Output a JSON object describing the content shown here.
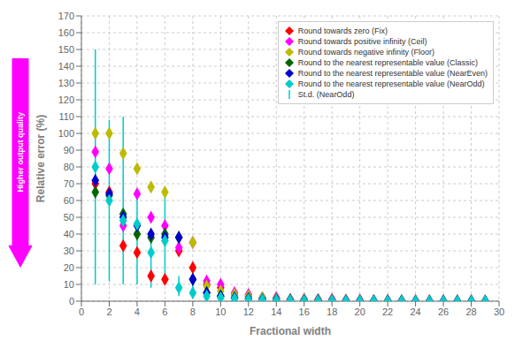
{
  "chart_data": {
    "type": "scatter",
    "xlabel": "Fractional width",
    "ylabel": "Relative error (%)",
    "xlim": [
      0,
      30
    ],
    "ylim": [
      0,
      170
    ],
    "xticks": [
      0,
      2,
      4,
      6,
      8,
      10,
      12,
      14,
      16,
      18,
      20,
      22,
      24,
      26,
      28,
      30
    ],
    "yticks": [
      0,
      10,
      20,
      30,
      40,
      50,
      60,
      70,
      80,
      90,
      100,
      110,
      120,
      130,
      140,
      150,
      160,
      170
    ],
    "grid": true,
    "legend": "upper right",
    "series": [
      {
        "name": "Round towards zero (Fix)",
        "color": "#ff0000",
        "marker": "diamond",
        "x": [
          1,
          2,
          3,
          4,
          5,
          6,
          7,
          8,
          9,
          10,
          11,
          12,
          13,
          14,
          15,
          16,
          17,
          18,
          19,
          20,
          21,
          22,
          23,
          24,
          25,
          26,
          27,
          28,
          29
        ],
        "values": [
          70,
          65,
          33,
          29,
          15,
          13,
          30,
          20,
          10,
          8,
          4,
          3,
          2,
          2,
          1,
          1,
          1,
          1,
          0.5,
          0.5,
          0.3,
          0.3,
          0.2,
          0.2,
          0.1,
          0.1,
          0.1,
          0.1,
          0.05
        ]
      },
      {
        "name": "Round towards positive infinity (Ceil)",
        "color": "#ff00ff",
        "marker": "diamond",
        "x": [
          1,
          2,
          3,
          4,
          5,
          6,
          7,
          8,
          9,
          10,
          11,
          12,
          13,
          14,
          15,
          16,
          17,
          18,
          19,
          20,
          21,
          22,
          23,
          24,
          25,
          26,
          27,
          28,
          29
        ],
        "values": [
          89,
          79,
          45,
          64,
          50,
          45,
          32,
          35,
          12,
          10,
          5,
          4,
          2,
          2,
          1,
          1,
          1,
          1,
          0.5,
          0.5,
          0.3,
          0.3,
          0.2,
          0.2,
          0.1,
          0.1,
          0.1,
          0.1,
          0.05
        ]
      },
      {
        "name": "Round towards negative infinity (Floor)",
        "color": "#bbbb00",
        "marker": "diamond",
        "x": [
          1,
          2,
          3,
          4,
          5,
          6,
          7,
          8,
          9,
          10,
          11,
          12,
          13,
          14,
          15,
          16,
          17,
          18,
          19,
          20,
          21,
          22,
          23,
          24,
          25,
          26,
          27,
          28,
          29
        ],
        "values": [
          100,
          100,
          88,
          79,
          68,
          65,
          38,
          35,
          9,
          6,
          4,
          3,
          2,
          1.5,
          1,
          1,
          0.8,
          0.5,
          0.4,
          0.3,
          0.2,
          0.2,
          0.15,
          0.12,
          0.1,
          0.08,
          0.07,
          0.06,
          0.05
        ]
      },
      {
        "name": "Round to the nearest representable value (Classic)",
        "color": "#006600",
        "marker": "diamond",
        "x": [
          1,
          2,
          3,
          4,
          5,
          6,
          7,
          8,
          9,
          10,
          11,
          12,
          13,
          14,
          15,
          16,
          17,
          18,
          19,
          20,
          21,
          22,
          23,
          24,
          25,
          26,
          27,
          28,
          29
        ],
        "values": [
          65,
          63,
          52,
          40,
          38,
          40,
          38,
          13,
          5,
          3,
          2,
          1.5,
          1,
          0.8,
          0.5,
          0.4,
          0.3,
          0.2,
          0.2,
          0.15,
          0.12,
          0.1,
          0.08,
          0.06,
          0.05,
          0.04,
          0.03,
          0.03,
          0.02
        ]
      },
      {
        "name": "Round to the nearest representable value (NearEven)",
        "color": "#0000cc",
        "marker": "diamond",
        "x": [
          1,
          2,
          3,
          4,
          5,
          6,
          7,
          8,
          9,
          10,
          11,
          12,
          13,
          14,
          15,
          16,
          17,
          18,
          19,
          20,
          21,
          22,
          23,
          24,
          25,
          26,
          27,
          28,
          29
        ],
        "values": [
          72,
          64,
          50,
          45,
          40,
          38,
          38,
          13,
          5,
          3,
          2,
          1.5,
          1,
          0.8,
          0.5,
          0.4,
          0.3,
          0.2,
          0.2,
          0.15,
          0.12,
          0.1,
          0.08,
          0.06,
          0.05,
          0.04,
          0.03,
          0.03,
          0.02
        ]
      },
      {
        "name": "Round to the nearest representable value (NearOdd)",
        "color": "#00cccc",
        "marker": "diamond",
        "x": [
          1,
          2,
          3,
          4,
          5,
          6,
          7,
          8,
          9,
          10,
          11,
          12,
          13,
          14,
          15,
          16,
          17,
          18,
          19,
          20,
          21,
          22,
          23,
          24,
          25,
          26,
          27,
          28,
          29
        ],
        "values": [
          80,
          60,
          48,
          46,
          29,
          36,
          8,
          5,
          3,
          2,
          1.5,
          1,
          0.8,
          0.5,
          0.4,
          0.3,
          0.2,
          0.2,
          0.15,
          0.12,
          0.1,
          0.08,
          0.06,
          0.05,
          0.04,
          0.03,
          0.03,
          0.02,
          0.01
        ]
      },
      {
        "name": "St.d. (NearOdd)",
        "type": "errorbar",
        "color": "#00cccc",
        "x": [
          1,
          2,
          3,
          4,
          5,
          6,
          7,
          8
        ],
        "low": [
          10,
          12,
          10,
          10,
          8,
          10,
          3,
          2
        ],
        "high": [
          150,
          108,
          110,
          65,
          42,
          65,
          15,
          16
        ]
      }
    ],
    "annotations": [
      {
        "text": "Higher output quality",
        "color": "#ff00ff"
      }
    ]
  }
}
